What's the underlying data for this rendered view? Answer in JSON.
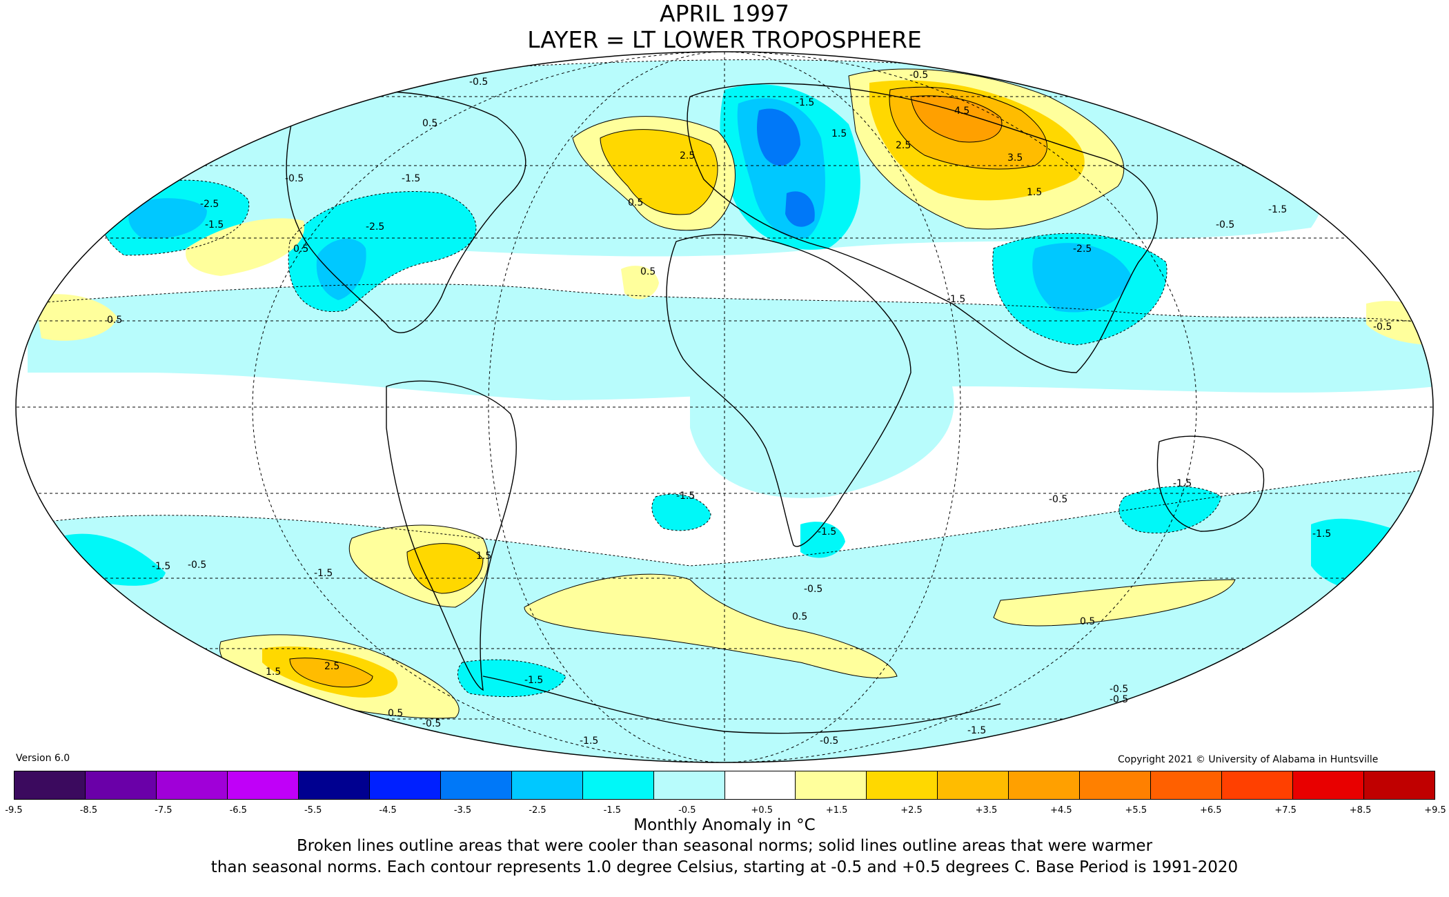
{
  "title_line1": "APRIL 1997",
  "title_line2": "LAYER = LT LOWER TROPOSPHERE",
  "version": "Version 6.0",
  "copyright": "Copyright 2021 © University of Alabama in Huntsville",
  "colorbar": {
    "colors": [
      "#3b0a5e",
      "#6a00a8",
      "#a000d8",
      "#c000f8",
      "#000090",
      "#0020ff",
      "#0078f8",
      "#00c8ff",
      "#00f8f8",
      "#b8fcfc",
      "#ffffff",
      "#ffff9c",
      "#ffd800",
      "#ffbc00",
      "#ffa000",
      "#ff8000",
      "#ff6000",
      "#ff4000",
      "#e80000",
      "#c00000"
    ],
    "ticks": [
      "-9.5",
      "-8.5",
      "-7.5",
      "-6.5",
      "-5.5",
      "-4.5",
      "-3.5",
      "-2.5",
      "-1.5",
      "-0.5",
      "+0.5",
      "+1.5",
      "+2.5",
      "+3.5",
      "+4.5",
      "+5.5",
      "+6.5",
      "+7.5",
      "+8.5",
      "+9.5"
    ]
  },
  "unit_label": "Monthly Anomaly in °C",
  "note_line1": "Broken lines outline areas that were cooler than seasonal norms; solid lines outline areas that were warmer",
  "note_line2": "than seasonal norms. Each contour represents 1.0 degree Celsius, starting at -0.5 and +0.5 degrees C. Base Period is 1991-2020",
  "contour_labels": [
    "-0.5",
    "-0.5",
    "0.5",
    "-0.5",
    "-1.5",
    "-2.5",
    "-1.5",
    "-2.5",
    "0.5",
    "2.5",
    "0.5",
    "-1.5",
    "1.5",
    "4.5",
    "3.5",
    "2.5",
    "1.5",
    "-0.5",
    "-2.5",
    "-1.5",
    "0.5",
    "0.5",
    "-1.5",
    "-0.5",
    "-1.5",
    "-1.5",
    "1.5",
    "-1.5",
    "-0.5",
    "0.5",
    "0.5",
    "-1.5",
    "2.5",
    "1.5",
    "0.5",
    "-0.5",
    "-1.5",
    "-1.5",
    "-0.5",
    "-0.5",
    "-1.5",
    "-1.5",
    "-0.5",
    "-1.5",
    "-0.5",
    "-0.5"
  ]
}
